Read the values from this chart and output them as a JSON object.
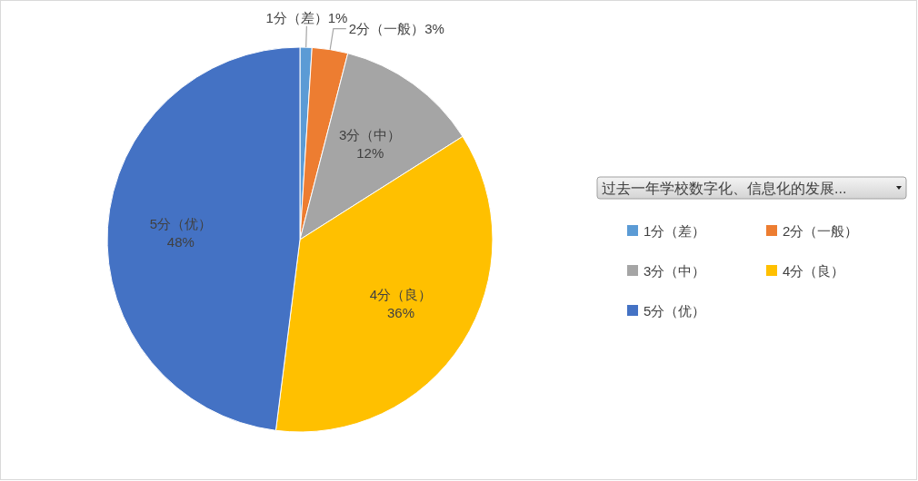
{
  "chart_data": {
    "type": "pie",
    "legend_title": "过去一年学校数字化、信息化的发展...",
    "categories": [
      "1分（差）",
      "2分（一般）",
      "3分（中）",
      "4分（良）",
      "5分（优）"
    ],
    "values": [
      1,
      3,
      12,
      36,
      48
    ],
    "value_labels": [
      "1%",
      "3%",
      "12%",
      "36%",
      "48%"
    ],
    "colors": [
      "#5b9bd5",
      "#ed7d31",
      "#a5a5a5",
      "#ffc000",
      "#4472c4"
    ],
    "legend": "right"
  }
}
